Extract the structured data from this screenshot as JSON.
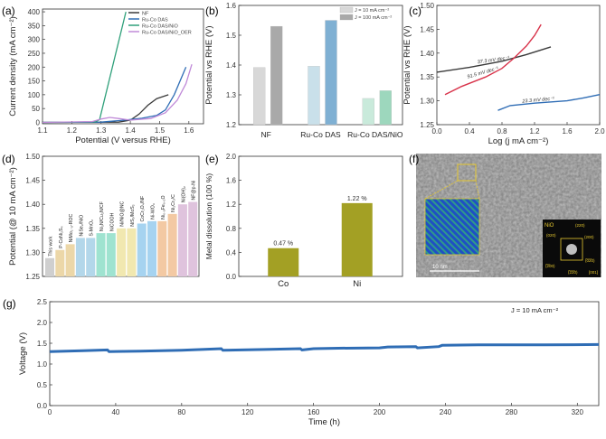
{
  "chart_data": [
    {
      "panel": "(a)",
      "type": "line",
      "xlabel": "Potential (V versus RHE)",
      "ylabel": "Current density (mA cm⁻²)",
      "xlim": [
        1.1,
        1.65
      ],
      "ylim": [
        -5,
        410
      ],
      "xticks": [
        1.1,
        1.2,
        1.3,
        1.4,
        1.5,
        1.6
      ],
      "yticks": [
        0,
        50,
        100,
        150,
        200,
        250,
        300,
        350,
        400
      ],
      "legend": "top-right",
      "series": [
        {
          "name": "NF",
          "color": "#3a3a3a",
          "points": [
            [
              1.1,
              0
            ],
            [
              1.36,
              1
            ],
            [
              1.4,
              8
            ],
            [
              1.43,
              30
            ],
            [
              1.46,
              62
            ],
            [
              1.49,
              86
            ],
            [
              1.53,
              100
            ]
          ]
        },
        {
          "name": "Ru-Co DAS",
          "color": "#2f6db5",
          "points": [
            [
              1.1,
              0
            ],
            [
              1.3,
              1
            ],
            [
              1.38,
              8
            ],
            [
              1.44,
              15
            ],
            [
              1.49,
              25
            ],
            [
              1.52,
              45
            ],
            [
              1.55,
              100
            ],
            [
              1.59,
              200
            ]
          ]
        },
        {
          "name": "Ru-Co DAS/NiO",
          "color": "#2fa07a",
          "points": [
            [
              1.1,
              0
            ],
            [
              1.28,
              2
            ],
            [
              1.295,
              10
            ],
            [
              1.385,
              400
            ]
          ]
        },
        {
          "name": "Ru-Co DAS/NiO_OER",
          "color": "#c08ad8",
          "points": [
            [
              1.1,
              0
            ],
            [
              1.27,
              3
            ],
            [
              1.3,
              12
            ],
            [
              1.33,
              18
            ],
            [
              1.36,
              14
            ],
            [
              1.4,
              8
            ],
            [
              1.47,
              14
            ],
            [
              1.52,
              35
            ],
            [
              1.56,
              80
            ],
            [
              1.59,
              140
            ],
            [
              1.61,
              210
            ]
          ]
        }
      ]
    },
    {
      "panel": "(b)",
      "type": "bar",
      "ylabel": "Potential vs RHE (V)",
      "categories": [
        "NF",
        "Ru-Co DAS",
        "Ru-Co DAS/NiO"
      ],
      "ylim": [
        1.2,
        1.6
      ],
      "yticks": [
        1.2,
        1.3,
        1.4,
        1.5,
        1.6
      ],
      "legend": "top-right",
      "series": [
        {
          "name": "J = 10 mA cm⁻²",
          "values": [
            1.392,
            1.396,
            1.288
          ],
          "colors": [
            "#d8d8d8",
            "#c9e0ea",
            "#c9eadb"
          ]
        },
        {
          "name": "J = 100 mA cm⁻²",
          "values": [
            1.53,
            1.55,
            1.314
          ],
          "colors": [
            "#a9a9a9",
            "#7fb0d3",
            "#9dd7bd"
          ]
        }
      ]
    },
    {
      "panel": "(c)",
      "type": "line",
      "xlabel": "Log (j mA cm⁻²)",
      "ylabel": "Potential vs RHE (V)",
      "xlim": [
        0,
        2.0
      ],
      "ylim": [
        1.25,
        1.5
      ],
      "xticks": [
        0.0,
        0.4,
        0.8,
        1.2,
        1.6,
        2.0
      ],
      "yticks": [
        1.25,
        1.3,
        1.35,
        1.4,
        1.45,
        1.5
      ],
      "series": [
        {
          "color": "#3a3a3a",
          "label": "37.3 mV dec⁻¹",
          "points": [
            [
              0,
              1.36
            ],
            [
              0.4,
              1.37
            ],
            [
              0.8,
              1.383
            ],
            [
              1.1,
              1.397
            ],
            [
              1.4,
              1.413
            ]
          ]
        },
        {
          "color": "#d8334a",
          "label": "91.5 mV dec⁻¹",
          "points": [
            [
              0.1,
              1.313
            ],
            [
              0.3,
              1.33
            ],
            [
              0.6,
              1.35
            ],
            [
              0.8,
              1.368
            ],
            [
              0.95,
              1.39
            ],
            [
              1.1,
              1.415
            ],
            [
              1.2,
              1.437
            ],
            [
              1.28,
              1.46
            ]
          ]
        },
        {
          "color": "#2f6db5",
          "label": "23.3 mV dec⁻¹",
          "points": [
            [
              0.75,
              1.28
            ],
            [
              0.9,
              1.29
            ],
            [
              1.2,
              1.295
            ],
            [
              1.6,
              1.3
            ],
            [
              1.8,
              1.306
            ],
            [
              2.0,
              1.313
            ]
          ]
        }
      ]
    },
    {
      "panel": "(d)",
      "type": "bar",
      "ylabel": "Potential (@ 10 mA cm⁻²)",
      "ylim": [
        1.25,
        1.5
      ],
      "yticks": [
        1.25,
        1.3,
        1.35,
        1.4,
        1.45,
        1.5
      ],
      "categories": [
        "This work",
        "P-CoNi₂S₄",
        "NiMo₁₋ₓ-ROC",
        "NiSe₂/NiO",
        "S-MnO₂",
        "Ni₃N/Cu₃N/CF",
        "NiCOOH",
        "Ni/NiO@NC",
        "NiS₂/MoS₂",
        "CoCr₂O₄/NF",
        "Ni-WO₃",
        "Ni₀.₅Fe₀.₅O",
        "Ni₃Cr₂/C",
        "Ni(OH)₂",
        "NF@p-Ni"
      ],
      "values": [
        1.288,
        1.305,
        1.317,
        1.33,
        1.33,
        1.34,
        1.34,
        1.35,
        1.35,
        1.36,
        1.365,
        1.365,
        1.38,
        1.4,
        1.405
      ],
      "colors": [
        "#cfcfcf",
        "#ecd7a8",
        "#ecd7a8",
        "#b3d7ea",
        "#b3d7ea",
        "#9fe3d0",
        "#9fe3d0",
        "#f1e8b0",
        "#f1e8b0",
        "#a6d3f0",
        "#a6d3f0",
        "#f3c9a3",
        "#f3c9a3",
        "#dfc3dd",
        "#dfc3dd"
      ]
    },
    {
      "panel": "(e)",
      "type": "bar",
      "ylabel": "Metal dissolution (100 %)",
      "categories": [
        "Co",
        "Ni"
      ],
      "values": [
        0.47,
        1.22
      ],
      "data_labels": [
        "0.47 %",
        "1.22 %"
      ],
      "ylim": [
        0,
        2.0
      ],
      "yticks": [
        0.0,
        0.4,
        0.8,
        1.2,
        1.6,
        2.0
      ],
      "color": "#a3a024"
    },
    {
      "panel": "(g)",
      "type": "line",
      "xlabel": "Time (h)",
      "ylabel": "Voltage (V)",
      "annotation": "J = 10 mA cm⁻²",
      "xlim": [
        0,
        333
      ],
      "ylim": [
        0,
        2.5
      ],
      "xticks": [
        0,
        40,
        80,
        120,
        160,
        200,
        240,
        280,
        320
      ],
      "yticks": [
        0.0,
        0.5,
        1.0,
        1.5,
        2.0,
        2.5
      ],
      "color": "#2f6db5",
      "points": [
        [
          0,
          1.3
        ],
        [
          20,
          1.32
        ],
        [
          35,
          1.34
        ],
        [
          36,
          1.3
        ],
        [
          55,
          1.31
        ],
        [
          80,
          1.33
        ],
        [
          104,
          1.37
        ],
        [
          105,
          1.33
        ],
        [
          130,
          1.35
        ],
        [
          152,
          1.37
        ],
        [
          153,
          1.34
        ],
        [
          160,
          1.37
        ],
        [
          175,
          1.38
        ],
        [
          200,
          1.39
        ],
        [
          205,
          1.41
        ],
        [
          222,
          1.42
        ],
        [
          223,
          1.39
        ],
        [
          236,
          1.42
        ],
        [
          238,
          1.45
        ],
        [
          260,
          1.46
        ],
        [
          300,
          1.46
        ],
        [
          333,
          1.47
        ]
      ]
    }
  ],
  "image_panel": {
    "panel": "(f)",
    "scale_bar": "10 nm",
    "saed_title": "NiO",
    "saed_labels": [
      "(220)",
      "(020)",
      "(200)",
      "(̅0̅2̅0)",
      "(̅2̅00)",
      "(̅2̅2̅0)",
      "[001]"
    ]
  }
}
